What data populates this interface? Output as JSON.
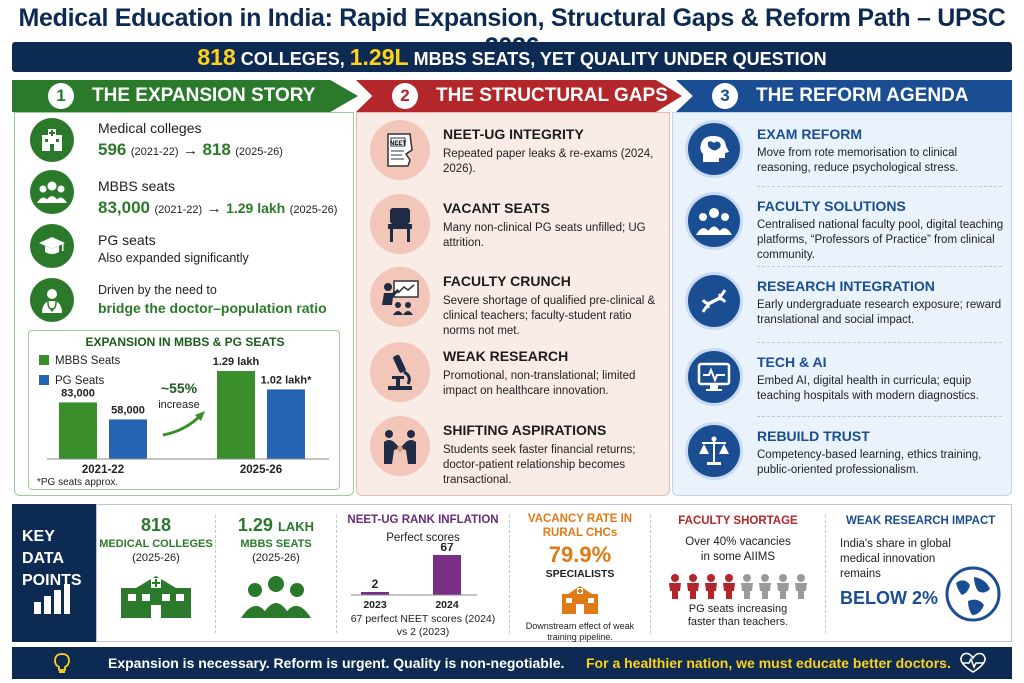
{
  "title": "Medical Education in India: Rapid Expansion, Structural Gaps & Reform Path – UPSC 2026",
  "subtitle": {
    "n1": "818",
    "t1": " COLLEGES, ",
    "n2": "1.29L",
    "t2": " MBBS SEATS, YET QUALITY UNDER QUESTION"
  },
  "columns": [
    {
      "num": "1",
      "label": "THE EXPANSION STORY"
    },
    {
      "num": "2",
      "label": "THE STRUCTURAL GAPS"
    },
    {
      "num": "3",
      "label": "THE REFORM AGENDA"
    }
  ],
  "expansion": {
    "colleges": {
      "label": "Medical colleges",
      "from": "596",
      "from_yr": "(2021-22)",
      "arrow": "→",
      "to": "818",
      "to_yr": "(2025-26)",
      "icon": "hospital-icon"
    },
    "seats": {
      "label": "MBBS seats",
      "from": "83,000",
      "from_yr": "(2021-22)",
      "arrow": "→",
      "to": "1.29 lakh",
      "to_yr": "(2025-26)",
      "icon": "people-icon"
    },
    "pg": {
      "label": "PG seats",
      "text": "Also expanded significantly",
      "icon": "graduation-cap-icon"
    },
    "driver": {
      "label": "Driven by the need to",
      "highlight": "bridge the doctor–population ratio",
      "icon": "doctor-icon"
    }
  },
  "chart_data": {
    "type": "bar",
    "title": "EXPANSION IN MBBS & PG SEATS",
    "categories": [
      "2021-22",
      "2025-26"
    ],
    "series": [
      {
        "name": "MBBS Seats",
        "values": [
          83000,
          129000
        ],
        "labels": [
          "83,000",
          "1.29 lakh"
        ],
        "color": "#3a8f2c"
      },
      {
        "name": "PG Seats",
        "values": [
          58000,
          102000
        ],
        "labels": [
          "58,000",
          "1.02 lakh*"
        ],
        "color": "#2563b3"
      }
    ],
    "annotation": {
      "big": "~55%",
      "small": "increase"
    },
    "footnote": "*PG seats approx.",
    "legend": "top-left"
  },
  "gaps": [
    {
      "title": "NEET-UG INTEGRITY",
      "text": "Repeated paper leaks & re-exams (2024, 2026).",
      "icon": "torn-paper-icon",
      "tag": "NEET"
    },
    {
      "title": "VACANT SEATS",
      "text": "Many non-clinical PG seats unfilled; UG attrition.",
      "icon": "empty-chair-icon"
    },
    {
      "title": "FACULTY CRUNCH",
      "text": "Severe shortage of qualified pre-clinical & clinical teachers; faculty-student ratio norms not met.",
      "icon": "teacher-icon"
    },
    {
      "title": "WEAK RESEARCH",
      "text": "Promotional, non-translational; limited impact on healthcare innovation.",
      "icon": "microscope-icon"
    },
    {
      "title": "SHIFTING ASPIRATIONS",
      "text": "Students seek faster financial returns; doctor-patient relationship becomes transactional.",
      "icon": "handshake-icon"
    }
  ],
  "reforms": [
    {
      "title": "EXAM REFORM",
      "text": "Move from rote memorisation to clinical reasoning, reduce psychological stress.",
      "icon": "brain-icon"
    },
    {
      "title": "FACULTY SOLUTIONS",
      "text": "Centralised national faculty pool, digital teaching platforms, “Professors of Practice” from clinical community.",
      "icon": "group-icon"
    },
    {
      "title": "RESEARCH INTEGRATION",
      "text": "Early undergraduate research exposure; reward translational and social impact.",
      "icon": "dna-icon"
    },
    {
      "title": "TECH & AI",
      "text": "Embed AI, digital health in curricula; equip teaching hospitals with modern diagnostics.",
      "icon": "monitor-icon"
    },
    {
      "title": "REBUILD TRUST",
      "text": "Competency-based learning, ethics training, public-oriented professionalism.",
      "icon": "scales-icon"
    }
  ],
  "key_data": {
    "label_1": "KEY DATA",
    "label_2": "POINTS",
    "colleges": {
      "value": "818",
      "label": "MEDICAL COLLEGES",
      "sub": "(2025-26)"
    },
    "seats": {
      "value": "1.29",
      "unit": "LAKH",
      "label": "MBBS SEATS",
      "sub": "(2025-26)"
    },
    "neet": {
      "title": "NEET-UG RANK INFLATION",
      "sub": "Perfect scores",
      "years": [
        "2023",
        "2024"
      ],
      "values": [
        2,
        67
      ],
      "labels": [
        "2",
        "67"
      ],
      "note_1": "67 perfect NEET scores (2024)",
      "note_2": "vs 2 (2023)"
    },
    "vacancy": {
      "title_1": "VACANCY RATE IN",
      "title_2": "RURAL CHCs",
      "value": "79.9%",
      "label": "SPECIALISTS",
      "note_1": "Downstream effect of weak",
      "note_2": "training pipeline."
    },
    "faculty": {
      "title": "FACULTY SHORTAGE",
      "text_1": "Over 40% vacancies",
      "text_2": "in some AIIMS",
      "note_1": "PG seats increasing",
      "note_2": "faster than teachers."
    },
    "research": {
      "title": "WEAK RESEARCH IMPACT",
      "text_1": "India's share in global",
      "text_2": "medical innovation",
      "text_3": "remains",
      "value": "BELOW 2%"
    }
  },
  "footer": {
    "left": "Expansion is necessary. Reform is urgent. Quality is non-negotiable.",
    "right": "For a healthier nation, we must educate better doctors."
  },
  "colors": {
    "navy": "#0d2a52",
    "green": "#2b7a2b",
    "red": "#b3262a",
    "blue": "#1a4d92",
    "yellow": "#ffd21a"
  }
}
